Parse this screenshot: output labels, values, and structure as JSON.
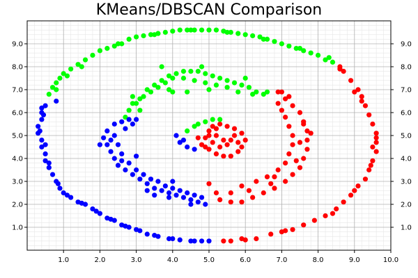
{
  "chart_data": {
    "type": "scatter",
    "title": "KMeans/DBSCAN Comparison",
    "xlabel": "",
    "ylabel": "",
    "xlim": [
      0,
      10
    ],
    "ylim": [
      0,
      10
    ],
    "xticks": [
      1.0,
      2.0,
      3.0,
      4.0,
      5.0,
      6.0,
      7.0,
      8.0,
      9.0,
      10.0
    ],
    "yticks": [
      1.0,
      2.0,
      3.0,
      4.0,
      5.0,
      6.0,
      7.0,
      8.0,
      9.0
    ],
    "y_ticks_right": true,
    "grid": "major and minor",
    "colors": {
      "red": "#ff0000",
      "green": "#00ff00",
      "blue": "#0000ff"
    },
    "series": [
      {
        "color": "#ff0000",
        "points": [
          [
            5.4,
            0.4
          ],
          [
            5.6,
            0.4
          ],
          [
            5.9,
            0.5
          ],
          [
            6.3,
            0.5
          ],
          [
            6.7,
            0.7
          ],
          [
            7.0,
            0.8
          ],
          [
            7.3,
            0.9
          ],
          [
            7.6,
            1.1
          ],
          [
            7.9,
            1.3
          ],
          [
            8.2,
            1.5
          ],
          [
            8.5,
            1.8
          ],
          [
            8.7,
            2.1
          ],
          [
            8.9,
            2.4
          ],
          [
            9.1,
            2.8
          ],
          [
            9.3,
            3.1
          ],
          [
            9.4,
            3.5
          ],
          [
            9.5,
            3.9
          ],
          [
            9.6,
            4.3
          ],
          [
            9.6,
            4.7
          ],
          [
            9.6,
            5.1
          ],
          [
            9.5,
            5.5
          ],
          [
            9.4,
            5.9
          ],
          [
            9.3,
            6.3
          ],
          [
            9.2,
            6.7
          ],
          [
            9.1,
            7.0
          ],
          [
            8.9,
            7.4
          ],
          [
            8.7,
            7.8
          ],
          [
            8.6,
            8.0
          ],
          [
            9.0,
            6.9
          ],
          [
            9.5,
            4.5
          ],
          [
            8.4,
            1.6
          ],
          [
            6.0,
            0.45
          ],
          [
            7.1,
            0.85
          ],
          [
            8.6,
            7.9
          ],
          [
            9.2,
            6.5
          ],
          [
            9.6,
            4.9
          ],
          [
            9.45,
            3.7
          ],
          [
            9.0,
            2.6
          ],
          [
            5.3,
            2.2
          ],
          [
            5.6,
            2.1
          ],
          [
            5.9,
            2.1
          ],
          [
            6.2,
            2.3
          ],
          [
            6.5,
            2.5
          ],
          [
            6.8,
            2.7
          ],
          [
            7.1,
            3.0
          ],
          [
            7.3,
            3.3
          ],
          [
            7.5,
            3.6
          ],
          [
            7.6,
            4.0
          ],
          [
            7.7,
            4.4
          ],
          [
            7.7,
            4.8
          ],
          [
            7.7,
            5.2
          ],
          [
            7.6,
            5.6
          ],
          [
            7.5,
            6.0
          ],
          [
            7.3,
            6.3
          ],
          [
            7.1,
            6.6
          ],
          [
            6.9,
            6.9
          ],
          [
            5.2,
            2.5
          ],
          [
            5.6,
            2.5
          ],
          [
            5.9,
            2.8
          ],
          [
            6.3,
            3.0
          ],
          [
            6.6,
            3.2
          ],
          [
            6.9,
            3.5
          ],
          [
            7.1,
            3.8
          ],
          [
            7.2,
            4.2
          ],
          [
            7.3,
            4.6
          ],
          [
            7.3,
            5.0
          ],
          [
            7.2,
            5.4
          ],
          [
            7.1,
            5.8
          ],
          [
            7.0,
            6.1
          ],
          [
            6.9,
            6.4
          ],
          [
            7.4,
            3.9
          ],
          [
            6.8,
            3.2
          ],
          [
            6.1,
            2.6
          ],
          [
            7.6,
            5.5
          ],
          [
            7.2,
            6.7
          ],
          [
            7.0,
            6.9
          ],
          [
            5.0,
            2.9
          ],
          [
            7.8,
            5.1
          ],
          [
            6.7,
            2.9
          ],
          [
            7.5,
            4.7
          ],
          [
            4.8,
            4.6
          ],
          [
            4.9,
            4.9
          ],
          [
            5.0,
            5.2
          ],
          [
            5.1,
            5.4
          ],
          [
            5.3,
            5.5
          ],
          [
            5.5,
            5.4
          ],
          [
            5.7,
            5.3
          ],
          [
            5.9,
            5.1
          ],
          [
            6.0,
            4.8
          ],
          [
            5.9,
            4.5
          ],
          [
            5.8,
            4.3
          ],
          [
            5.6,
            4.1
          ],
          [
            5.4,
            4.1
          ],
          [
            5.2,
            4.2
          ],
          [
            5.0,
            4.4
          ],
          [
            4.7,
            4.9
          ],
          [
            5.2,
            5.0
          ],
          [
            5.4,
            4.8
          ],
          [
            5.6,
            4.8
          ],
          [
            5.8,
            4.7
          ],
          [
            5.1,
            4.7
          ],
          [
            5.3,
            4.5
          ],
          [
            5.5,
            4.6
          ],
          [
            5.0,
            5.0
          ],
          [
            5.7,
            5.0
          ],
          [
            5.2,
            5.3
          ],
          [
            4.9,
            4.5
          ]
        ]
      },
      {
        "color": "#00ff00",
        "points": [
          [
            0.6,
            6.8
          ],
          [
            0.7,
            7.1
          ],
          [
            0.8,
            7.3
          ],
          [
            0.9,
            7.5
          ],
          [
            1.0,
            7.7
          ],
          [
            1.2,
            7.9
          ],
          [
            1.4,
            8.1
          ],
          [
            1.6,
            8.3
          ],
          [
            1.8,
            8.5
          ],
          [
            2.0,
            8.7
          ],
          [
            2.2,
            8.8
          ],
          [
            2.4,
            8.9
          ],
          [
            2.6,
            9.0
          ],
          [
            2.8,
            9.2
          ],
          [
            3.0,
            9.3
          ],
          [
            3.2,
            9.35
          ],
          [
            3.4,
            9.4
          ],
          [
            3.6,
            9.45
          ],
          [
            3.8,
            9.5
          ],
          [
            4.0,
            9.55
          ],
          [
            4.2,
            9.6
          ],
          [
            4.4,
            9.6
          ],
          [
            4.6,
            9.6
          ],
          [
            4.8,
            9.6
          ],
          [
            5.0,
            9.6
          ],
          [
            5.2,
            9.6
          ],
          [
            5.4,
            9.55
          ],
          [
            5.6,
            9.5
          ],
          [
            5.8,
            9.45
          ],
          [
            6.0,
            9.4
          ],
          [
            6.2,
            9.35
          ],
          [
            6.4,
            9.3
          ],
          [
            6.6,
            9.2
          ],
          [
            6.8,
            9.1
          ],
          [
            7.0,
            9.0
          ],
          [
            7.2,
            8.9
          ],
          [
            7.4,
            8.8
          ],
          [
            7.6,
            8.7
          ],
          [
            7.8,
            8.6
          ],
          [
            8.0,
            8.5
          ],
          [
            8.2,
            8.3
          ],
          [
            8.4,
            8.2
          ],
          [
            0.8,
            7.0
          ],
          [
            1.1,
            7.6
          ],
          [
            1.5,
            8.0
          ],
          [
            2.5,
            9.0
          ],
          [
            3.5,
            9.4
          ],
          [
            4.5,
            9.6
          ],
          [
            5.5,
            9.5
          ],
          [
            6.5,
            9.2
          ],
          [
            7.5,
            8.8
          ],
          [
            8.3,
            8.4
          ],
          [
            3.1,
            6.1
          ],
          [
            3.0,
            6.4
          ],
          [
            3.2,
            6.7
          ],
          [
            3.3,
            7.0
          ],
          [
            3.5,
            7.2
          ],
          [
            3.7,
            7.4
          ],
          [
            3.9,
            7.6
          ],
          [
            4.1,
            7.7
          ],
          [
            4.3,
            7.8
          ],
          [
            4.5,
            7.8
          ],
          [
            4.7,
            7.8
          ],
          [
            4.9,
            7.7
          ],
          [
            5.1,
            7.6
          ],
          [
            5.3,
            7.5
          ],
          [
            5.5,
            7.4
          ],
          [
            5.7,
            7.3
          ],
          [
            5.9,
            7.2
          ],
          [
            6.1,
            7.1
          ],
          [
            6.3,
            6.9
          ],
          [
            6.5,
            6.8
          ],
          [
            2.7,
            5.8
          ],
          [
            2.8,
            6.1
          ],
          [
            2.9,
            6.4
          ],
          [
            3.1,
            6.6
          ],
          [
            3.4,
            6.9
          ],
          [
            3.6,
            7.1
          ],
          [
            3.8,
            7.3
          ],
          [
            4.0,
            7.5
          ],
          [
            4.3,
            7.5
          ],
          [
            4.6,
            7.4
          ],
          [
            4.9,
            7.3
          ],
          [
            5.2,
            7.2
          ],
          [
            5.5,
            7.1
          ],
          [
            5.8,
            6.9
          ],
          [
            6.2,
            6.8
          ],
          [
            6.6,
            6.9
          ],
          [
            4.4,
            6.9
          ],
          [
            3.9,
            7.0
          ],
          [
            5.0,
            7.0
          ],
          [
            2.9,
            6.7
          ],
          [
            6.0,
            7.5
          ],
          [
            3.7,
            8.0
          ],
          [
            4.8,
            8.0
          ],
          [
            4.0,
            6.9
          ],
          [
            4.4,
            5.2
          ],
          [
            4.7,
            5.5
          ],
          [
            4.9,
            5.6
          ],
          [
            5.1,
            5.7
          ],
          [
            5.3,
            5.7
          ],
          [
            4.6,
            5.4
          ]
        ]
      },
      {
        "color": "#0000ff",
        "points": [
          [
            0.3,
            5.1
          ],
          [
            0.3,
            5.4
          ],
          [
            0.4,
            5.7
          ],
          [
            0.4,
            6.0
          ],
          [
            0.5,
            6.3
          ],
          [
            0.4,
            4.8
          ],
          [
            0.4,
            4.5
          ],
          [
            0.5,
            4.2
          ],
          [
            0.5,
            3.9
          ],
          [
            0.6,
            3.6
          ],
          [
            0.7,
            3.3
          ],
          [
            0.8,
            3.0
          ],
          [
            0.9,
            2.7
          ],
          [
            1.0,
            2.5
          ],
          [
            1.2,
            2.3
          ],
          [
            1.4,
            2.1
          ],
          [
            1.6,
            2.0
          ],
          [
            1.8,
            1.8
          ],
          [
            2.0,
            1.6
          ],
          [
            2.2,
            1.4
          ],
          [
            2.4,
            1.3
          ],
          [
            2.6,
            1.1
          ],
          [
            2.8,
            1.0
          ],
          [
            3.0,
            0.9
          ],
          [
            3.3,
            0.7
          ],
          [
            3.6,
            0.6
          ],
          [
            3.9,
            0.5
          ],
          [
            4.2,
            0.45
          ],
          [
            4.5,
            0.4
          ],
          [
            4.8,
            0.4
          ],
          [
            5.0,
            0.4
          ],
          [
            0.35,
            5.2
          ],
          [
            0.45,
            5.9
          ],
          [
            0.5,
            4.6
          ],
          [
            0.6,
            3.8
          ],
          [
            0.85,
            2.9
          ],
          [
            1.1,
            2.4
          ],
          [
            1.5,
            2.05
          ],
          [
            1.9,
            1.7
          ],
          [
            2.3,
            1.35
          ],
          [
            2.7,
            1.05
          ],
          [
            3.1,
            0.85
          ],
          [
            3.5,
            0.65
          ],
          [
            4.0,
            0.5
          ],
          [
            4.6,
            0.4
          ],
          [
            0.8,
            6.5
          ],
          [
            0.4,
            6.2
          ],
          [
            2.4,
            4.0
          ],
          [
            2.3,
            4.3
          ],
          [
            2.2,
            4.6
          ],
          [
            2.1,
            4.9
          ],
          [
            2.2,
            5.2
          ],
          [
            2.4,
            5.5
          ],
          [
            2.6,
            5.6
          ],
          [
            2.8,
            5.7
          ],
          [
            3.0,
            5.7
          ],
          [
            2.5,
            3.7
          ],
          [
            2.7,
            3.5
          ],
          [
            2.9,
            3.3
          ],
          [
            3.1,
            3.1
          ],
          [
            3.3,
            2.9
          ],
          [
            3.5,
            2.7
          ],
          [
            3.7,
            2.6
          ],
          [
            3.9,
            2.5
          ],
          [
            4.1,
            2.4
          ],
          [
            4.3,
            2.3
          ],
          [
            4.5,
            2.2
          ],
          [
            4.7,
            2.1
          ],
          [
            4.9,
            2.0
          ],
          [
            2.6,
            4.2
          ],
          [
            2.5,
            4.6
          ],
          [
            2.4,
            5.0
          ],
          [
            2.7,
            5.3
          ],
          [
            2.9,
            5.5
          ],
          [
            2.8,
            3.8
          ],
          [
            3.0,
            3.5
          ],
          [
            3.2,
            3.3
          ],
          [
            3.4,
            3.1
          ],
          [
            3.6,
            3.0
          ],
          [
            3.8,
            2.8
          ],
          [
            4.0,
            2.7
          ],
          [
            4.2,
            2.6
          ],
          [
            4.4,
            2.5
          ],
          [
            4.6,
            2.4
          ],
          [
            4.8,
            2.3
          ],
          [
            2.0,
            4.6
          ],
          [
            2.3,
            4.8
          ],
          [
            2.6,
            3.9
          ],
          [
            3.0,
            4.1
          ],
          [
            3.3,
            2.6
          ],
          [
            3.9,
            2.3
          ],
          [
            4.5,
            2.0
          ],
          [
            4.0,
            3.0
          ],
          [
            3.5,
            2.4
          ],
          [
            4.1,
            5.0
          ],
          [
            4.2,
            4.7
          ],
          [
            4.4,
            4.5
          ],
          [
            4.6,
            4.4
          ],
          [
            4.3,
            4.8
          ]
        ]
      }
    ]
  }
}
